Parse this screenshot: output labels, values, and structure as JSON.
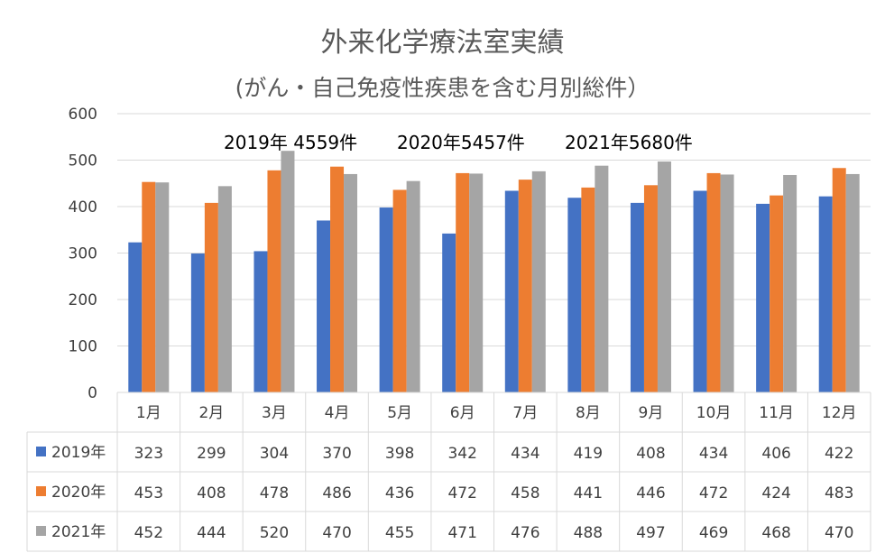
{
  "title": "外来化学療法室実績",
  "subtitle": "(がん・自己免疫性疾患を含む月別総件）",
  "annotations": [
    "2019年 4559件",
    "2020年5457件",
    "2021年5680件"
  ],
  "chart_data": {
    "type": "bar",
    "title": "外来化学療法室実績",
    "subtitle": "(がん・自己免疫性疾患を含む月別総件）",
    "categories": [
      "1月",
      "2月",
      "3月",
      "4月",
      "5月",
      "6月",
      "7月",
      "8月",
      "9月",
      "10月",
      "11月",
      "12月"
    ],
    "series": [
      {
        "name": "2019年",
        "color": "#4472C4",
        "values": [
          323,
          299,
          304,
          370,
          398,
          342,
          434,
          419,
          408,
          434,
          406,
          422
        ]
      },
      {
        "name": "2020年",
        "color": "#ED7D31",
        "values": [
          453,
          408,
          478,
          486,
          436,
          472,
          458,
          441,
          446,
          472,
          424,
          483
        ]
      },
      {
        "name": "2021年",
        "color": "#A5A5A5",
        "values": [
          452,
          444,
          520,
          470,
          455,
          471,
          476,
          488,
          497,
          469,
          468,
          470
        ]
      }
    ],
    "ylim": [
      0,
      600
    ],
    "yticks": [
      0,
      100,
      200,
      300,
      400,
      500,
      600
    ],
    "grid": true,
    "legend": "data-table",
    "annotations": [
      "2019年 4559件",
      "2020年5457件",
      "2021年5680件"
    ]
  }
}
